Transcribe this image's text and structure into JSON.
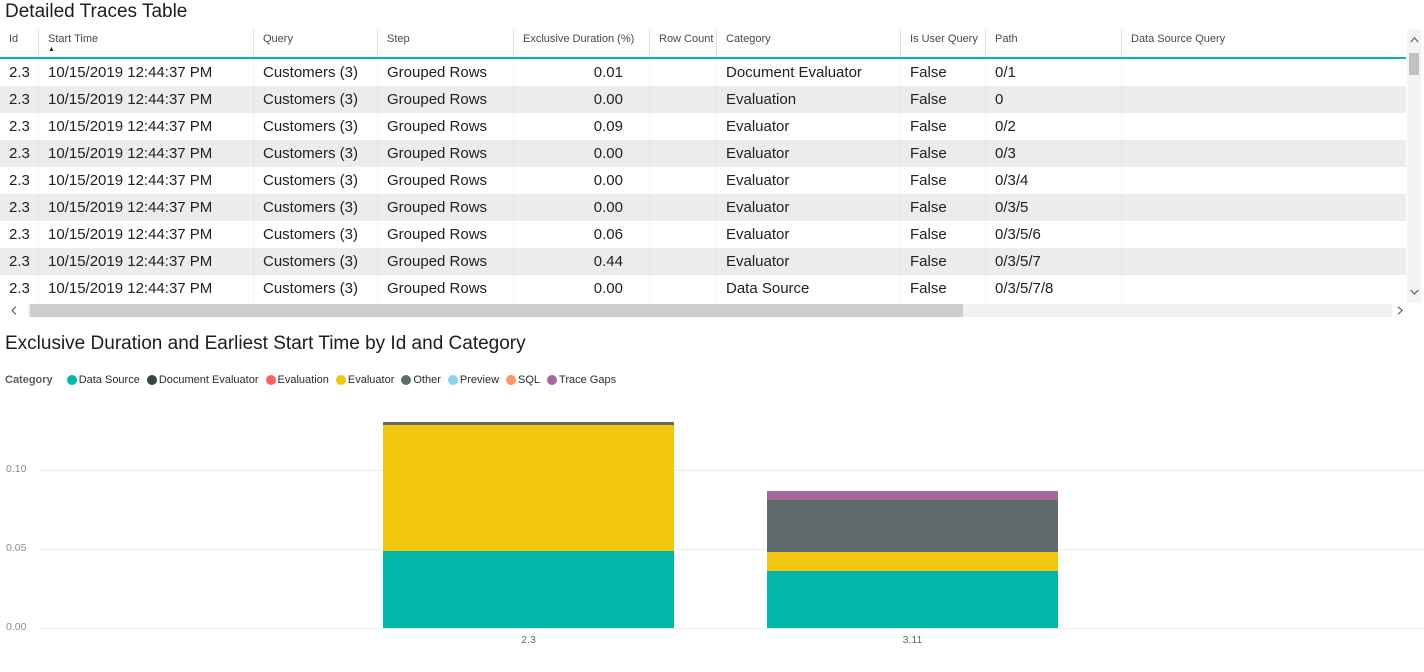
{
  "table": {
    "title": "Detailed Traces Table",
    "sort_indicator": "▲",
    "columns": [
      {
        "label": "Id",
        "sorted": false
      },
      {
        "label": "Start Time",
        "sorted": true
      },
      {
        "label": "Query",
        "sorted": false
      },
      {
        "label": "Step",
        "sorted": false
      },
      {
        "label": "Exclusive Duration (%)",
        "sorted": false
      },
      {
        "label": "Row Count",
        "sorted": false
      },
      {
        "label": "Category",
        "sorted": false
      },
      {
        "label": "Is User Query",
        "sorted": false
      },
      {
        "label": "Path",
        "sorted": false
      },
      {
        "label": "Data Source Query",
        "sorted": false
      }
    ],
    "rows": [
      [
        "2.3",
        "10/15/2019 12:44:37 PM",
        "Customers (3)",
        "Grouped Rows",
        "0.01",
        "",
        "Document Evaluator",
        "False",
        "0/1",
        ""
      ],
      [
        "2.3",
        "10/15/2019 12:44:37 PM",
        "Customers (3)",
        "Grouped Rows",
        "0.00",
        "",
        "Evaluation",
        "False",
        "0",
        ""
      ],
      [
        "2.3",
        "10/15/2019 12:44:37 PM",
        "Customers (3)",
        "Grouped Rows",
        "0.09",
        "",
        "Evaluator",
        "False",
        "0/2",
        ""
      ],
      [
        "2.3",
        "10/15/2019 12:44:37 PM",
        "Customers (3)",
        "Grouped Rows",
        "0.00",
        "",
        "Evaluator",
        "False",
        "0/3",
        ""
      ],
      [
        "2.3",
        "10/15/2019 12:44:37 PM",
        "Customers (3)",
        "Grouped Rows",
        "0.00",
        "",
        "Evaluator",
        "False",
        "0/3/4",
        ""
      ],
      [
        "2.3",
        "10/15/2019 12:44:37 PM",
        "Customers (3)",
        "Grouped Rows",
        "0.00",
        "",
        "Evaluator",
        "False",
        "0/3/5",
        ""
      ],
      [
        "2.3",
        "10/15/2019 12:44:37 PM",
        "Customers (3)",
        "Grouped Rows",
        "0.06",
        "",
        "Evaluator",
        "False",
        "0/3/5/6",
        ""
      ],
      [
        "2.3",
        "10/15/2019 12:44:37 PM",
        "Customers (3)",
        "Grouped Rows",
        "0.44",
        "",
        "Evaluator",
        "False",
        "0/3/5/7",
        ""
      ],
      [
        "2.3",
        "10/15/2019 12:44:37 PM",
        "Customers (3)",
        "Grouped Rows",
        "0.00",
        "",
        "Data Source",
        "False",
        "0/3/5/7/8",
        ""
      ]
    ]
  },
  "chart_data": {
    "type": "bar",
    "stacked": true,
    "title": "Exclusive Duration and Earliest Start Time by Id and Category",
    "categories": [
      "2.3",
      "3.11"
    ],
    "series": [
      {
        "name": "Data Source",
        "values": [
          0.049,
          0.036
        ]
      },
      {
        "name": "Evaluator",
        "values": [
          0.08,
          0.012
        ]
      },
      {
        "name": "Other",
        "values": [
          0.002,
          0.033
        ]
      },
      {
        "name": "Trace Gaps",
        "values": [
          0.0,
          0.006
        ]
      }
    ],
    "legend": {
      "title": "Category",
      "entries": [
        "Data Source",
        "Document Evaluator",
        "Evaluation",
        "Evaluator",
        "Other",
        "Preview",
        "SQL",
        "Trace Gaps"
      ]
    },
    "palette": {
      "Data Source": "#01B8AA",
      "Document Evaluator": "#374649",
      "Evaluation": "#FD625E",
      "Evaluator": "#F2C80F",
      "Other": "#5F6B6D",
      "Preview": "#8AD4EB",
      "SQL": "#FE9666",
      "Trace Gaps": "#A66999"
    },
    "y_ticks": [
      {
        "value": 0.0,
        "label": "0.00"
      },
      {
        "value": 0.05,
        "label": "0.05"
      },
      {
        "value": 0.1,
        "label": "0.10"
      }
    ],
    "ylim": [
      0,
      0.135
    ],
    "grid": true,
    "legend_position": "top",
    "accent_color": "#01B8AA"
  }
}
